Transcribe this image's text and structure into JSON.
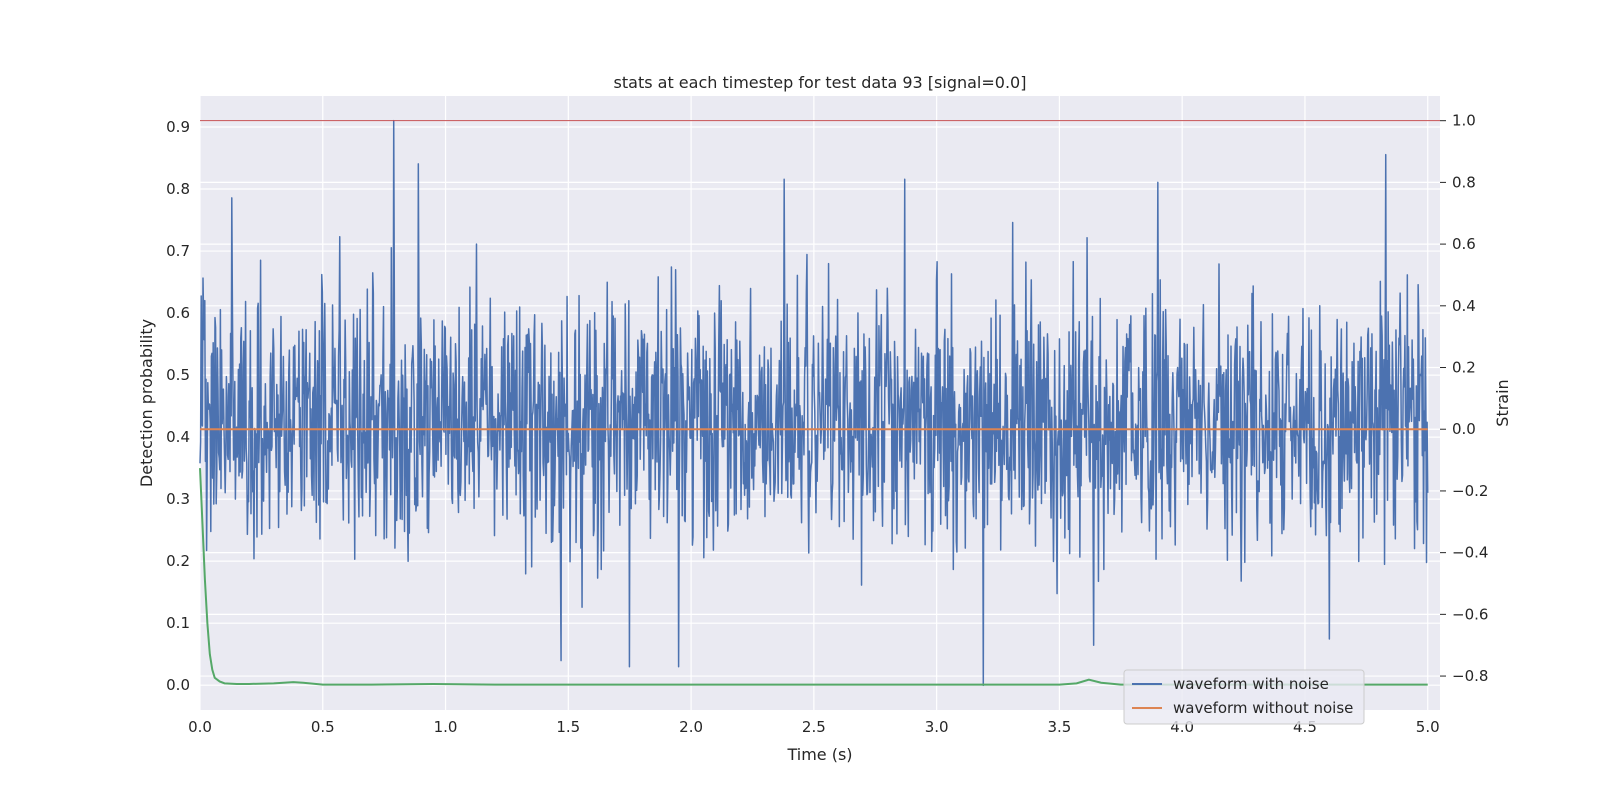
{
  "colors": {
    "background": "#ffffff",
    "plot_area": "#eaeaf2",
    "grid": "#ffffff",
    "text": "#262626",
    "noise_waveform": "#4c72b0",
    "clean_waveform": "#dd8452",
    "detection_probability": "#55a868",
    "threshold": "#c44e52"
  },
  "chart_data": {
    "type": "line",
    "title": "stats at each timestep for test data 93 [signal=0.0]",
    "xlabel": "Time (s)",
    "ylabel": "Detection probability",
    "ylabel_right": "Strain",
    "xlim": [
      0.0,
      5.05
    ],
    "ylim": [
      -0.04,
      0.95
    ],
    "ylim_right": [
      -0.91,
      1.08
    ],
    "x_ticks": [
      "0.0",
      "0.5",
      "1.0",
      "1.5",
      "2.0",
      "2.5",
      "3.0",
      "3.5",
      "4.0",
      "4.5",
      "5.0"
    ],
    "y_ticks": [
      "0.0",
      "0.1",
      "0.2",
      "0.3",
      "0.4",
      "0.5",
      "0.6",
      "0.7",
      "0.8",
      "0.9"
    ],
    "y_ticks_right": [
      "−0.8",
      "−0.6",
      "−0.4",
      "−0.2",
      "0.0",
      "0.2",
      "0.4",
      "0.6",
      "0.8",
      "1.0"
    ],
    "grid": true,
    "legend_position": "lower-right",
    "legend": [
      "waveform with noise",
      "waveform without noise"
    ],
    "series": [
      {
        "name": "waveform with noise",
        "axis": "right",
        "x_range": [
          0.0,
          5.0
        ],
        "samples": 2048,
        "approx_range": [
          -0.83,
          1.0
        ],
        "peaks": [
          {
            "x": 0.79,
            "y": 1.0
          },
          {
            "x": 0.89,
            "y": 0.86
          },
          {
            "x": 0.13,
            "y": 0.75
          },
          {
            "x": 2.38,
            "y": 0.81
          },
          {
            "x": 2.87,
            "y": 0.81
          },
          {
            "x": 3.9,
            "y": 0.8
          },
          {
            "x": 4.83,
            "y": 0.89
          },
          {
            "x": 3.19,
            "y": -0.83
          },
          {
            "x": 1.47,
            "y": -0.75
          },
          {
            "x": 1.75,
            "y": -0.77
          },
          {
            "x": 1.95,
            "y": -0.77
          },
          {
            "x": 3.64,
            "y": -0.7
          },
          {
            "x": 4.6,
            "y": -0.68
          }
        ]
      },
      {
        "name": "waveform without noise",
        "axis": "right",
        "x": [
          0.0,
          5.0
        ],
        "y": [
          0.0,
          0.0
        ]
      },
      {
        "axis": "left",
        "x": [
          0.0,
          0.01,
          0.02,
          0.03,
          0.04,
          0.05,
          0.06,
          0.08,
          0.1,
          0.15,
          0.2,
          0.3,
          0.38,
          0.42,
          0.5,
          0.7,
          0.95,
          1.2,
          2.0,
          3.0,
          3.5,
          3.57,
          3.62,
          3.67,
          3.75,
          4.0,
          4.5,
          5.0
        ],
        "y": [
          0.35,
          0.26,
          0.17,
          0.1,
          0.05,
          0.025,
          0.012,
          0.006,
          0.003,
          0.002,
          0.002,
          0.003,
          0.005,
          0.004,
          0.001,
          0.001,
          0.002,
          0.001,
          0.001,
          0.001,
          0.001,
          0.003,
          0.009,
          0.004,
          0.001,
          0.001,
          0.001,
          0.001
        ]
      },
      {
        "axis": "right",
        "x": [
          0.0,
          5.0
        ],
        "y": [
          1.0,
          1.0
        ]
      }
    ]
  }
}
